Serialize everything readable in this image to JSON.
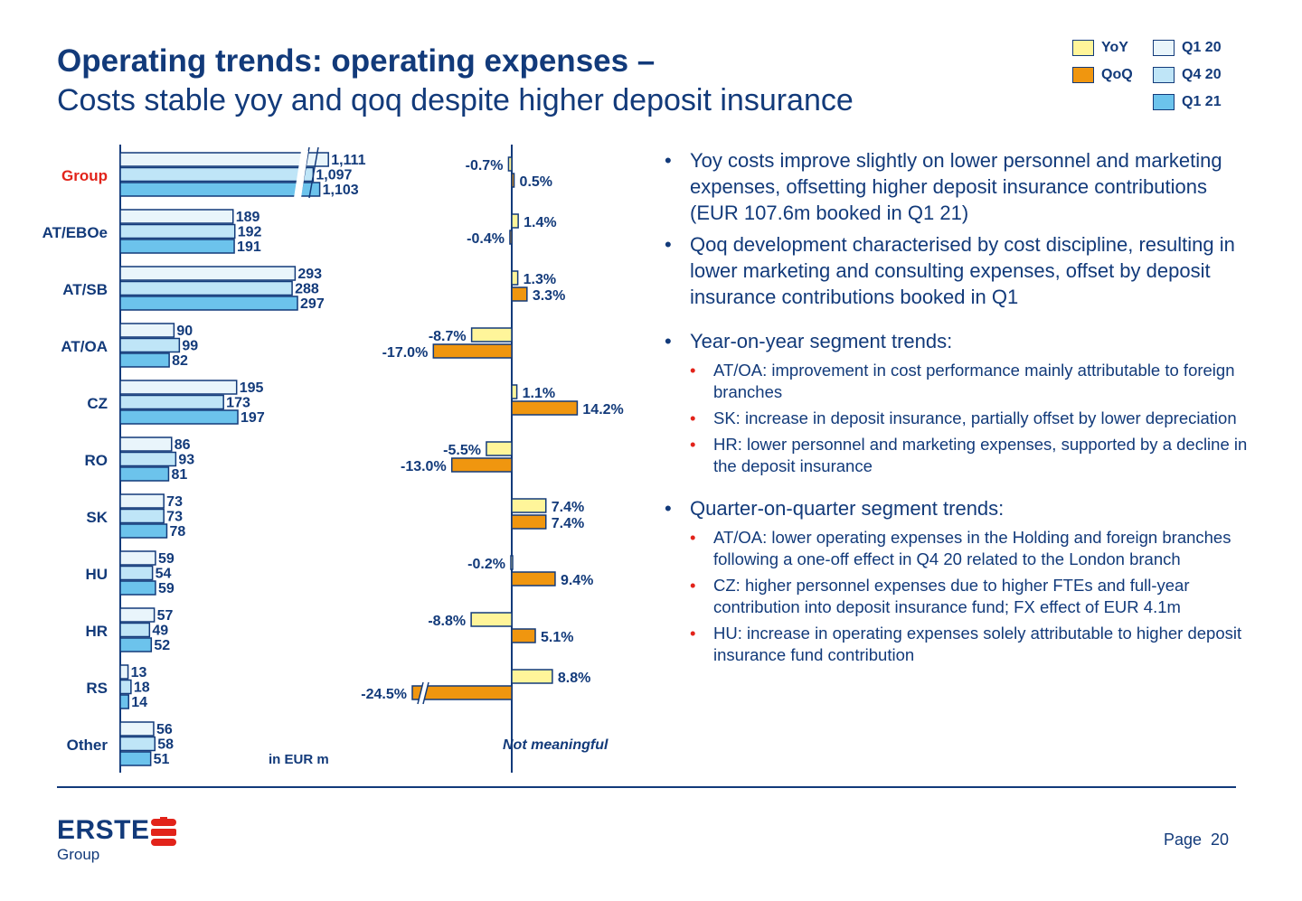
{
  "header": {
    "title": "Operating trends: operating expenses –",
    "subtitle": "Costs stable yoy and qoq despite higher deposit insurance"
  },
  "legend": {
    "yoy": "YoY",
    "qoq": "QoQ",
    "q1_20": "Q1 20",
    "q4_20": "Q4 20",
    "q1_21": "Q1 21"
  },
  "colors": {
    "text": "#123a7a",
    "q1_20": "#e9f5fb",
    "q4_20": "#bfe5f7",
    "q1_21": "#6cc3ec",
    "yoy": "#fff59a",
    "qoq": "#f0960f",
    "highlight": "#e2231a"
  },
  "chart_data": [
    {
      "type": "bar",
      "orientation": "horizontal",
      "categories": [
        "Group",
        "AT/EBOe",
        "AT/SB",
        "AT/OA",
        "CZ",
        "RO",
        "SK",
        "HU",
        "HR",
        "RS",
        "Other"
      ],
      "series": [
        {
          "name": "Q1 20",
          "values": [
            1111,
            189,
            293,
            90,
            195,
            86,
            73,
            59,
            57,
            13,
            56
          ],
          "labels": [
            "1,111",
            "189",
            "293",
            "90",
            "195",
            "86",
            "73",
            "59",
            "57",
            "13",
            "56"
          ]
        },
        {
          "name": "Q4 20",
          "values": [
            1097,
            192,
            288,
            99,
            173,
            93,
            73,
            54,
            49,
            18,
            58
          ],
          "labels": [
            "1,097",
            "192",
            "288",
            "99",
            "173",
            "93",
            "73",
            "54",
            "49",
            "18",
            "58"
          ]
        },
        {
          "name": "Q1 21",
          "values": [
            1103,
            191,
            297,
            82,
            197,
            81,
            78,
            59,
            52,
            14,
            51
          ],
          "labels": [
            "1,103",
            "191",
            "297",
            "82",
            "197",
            "81",
            "78",
            "59",
            "52",
            "14",
            "51"
          ]
        }
      ],
      "axis_break": "Group",
      "unit_note": "in EUR m"
    },
    {
      "type": "bar",
      "orientation": "horizontal",
      "categories": [
        "Group",
        "AT/EBOe",
        "AT/SB",
        "AT/OA",
        "CZ",
        "RO",
        "SK",
        "HU",
        "HR",
        "RS",
        "Other"
      ],
      "series": [
        {
          "name": "YoY",
          "values": [
            -0.7,
            1.4,
            1.3,
            -8.7,
            1.1,
            -5.5,
            7.4,
            -0.2,
            -8.8,
            8.8,
            null
          ],
          "labels": [
            "-0.7%",
            "1.4%",
            "1.3%",
            "-8.7%",
            "1.1%",
            "-5.5%",
            "7.4%",
            "-0.2%",
            "-8.8%",
            "8.8%",
            ""
          ]
        },
        {
          "name": "QoQ",
          "values": [
            0.5,
            -0.4,
            3.3,
            -17.0,
            14.2,
            -13.0,
            7.4,
            9.4,
            5.1,
            -24.5,
            null
          ],
          "labels": [
            "0.5%",
            "-0.4%",
            "3.3%",
            "-17.0%",
            "14.2%",
            "-13.0%",
            "7.4%",
            "9.4%",
            "5.1%",
            "-24.5%",
            ""
          ]
        }
      ],
      "axis_break": "RS",
      "other_note": "Not meaningful"
    }
  ],
  "bullets": [
    {
      "text": "Yoy costs improve slightly on lower personnel and marketing expenses, offsetting higher deposit insurance contributions (EUR 107.6m booked in Q1 21)",
      "subs": []
    },
    {
      "text": "Qoq development characterised by cost discipline, resulting in lower marketing and consulting expenses, offset by deposit insurance contributions booked in Q1",
      "subs": []
    },
    {
      "text": "Year-on-year segment trends:",
      "subs": [
        "AT/OA: improvement in cost performance mainly attributable to foreign branches",
        "SK: increase in deposit insurance, partially offset by lower depreciation",
        "HR: lower personnel and marketing expenses, supported by a decline in the deposit insurance"
      ]
    },
    {
      "text": "Quarter-on-quarter segment trends:",
      "subs": [
        "AT/OA: lower operating expenses in the Holding and foreign branches following a one-off effect in Q4 20 related to the London branch",
        "CZ: higher personnel expenses due to higher FTEs and full-year contribution into deposit insurance fund; FX effect of EUR 4.1m",
        "HU: increase in operating expenses solely attributable to higher deposit insurance fund contribution"
      ]
    }
  ],
  "footer": {
    "logo_text": "ERSTE",
    "logo_sub": "Group",
    "page_label": "Page",
    "page_number": "20"
  }
}
